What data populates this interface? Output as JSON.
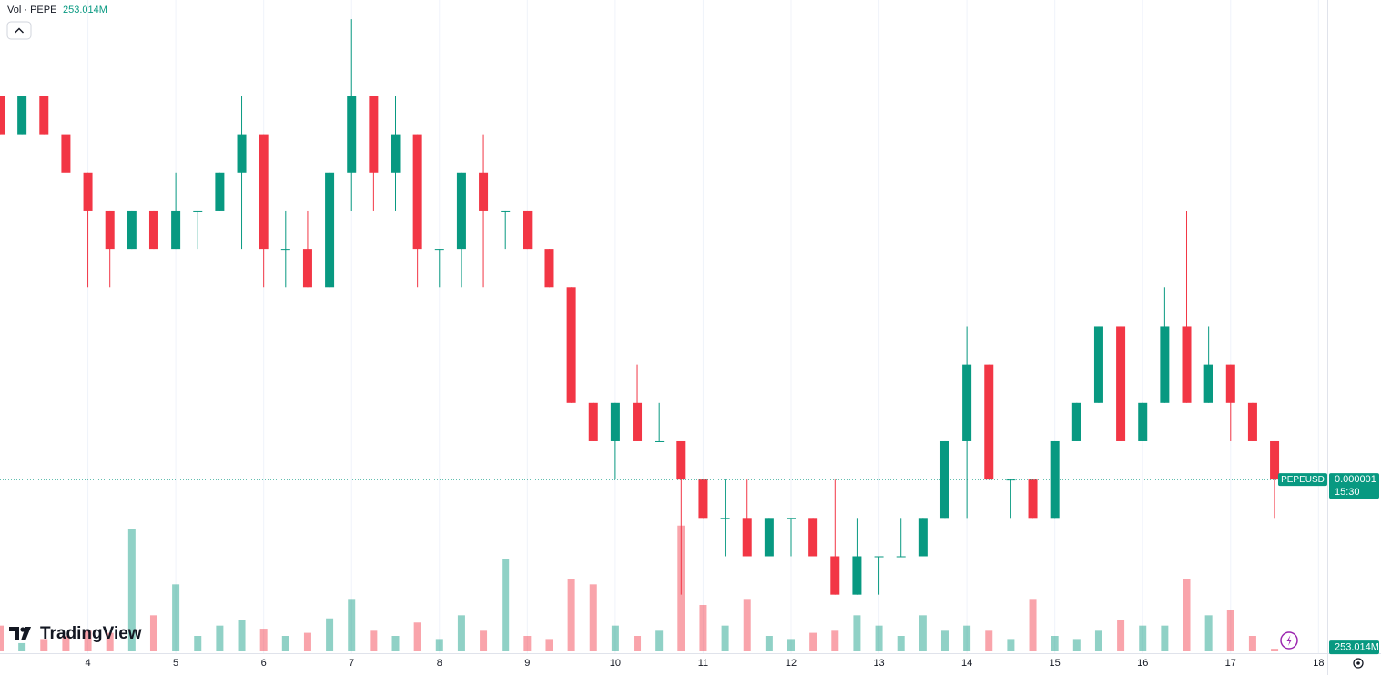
{
  "chart_data": {
    "type": "candlestick",
    "x": [
      3,
      3.25,
      3.5,
      3.75,
      4,
      4.25,
      4.5,
      4.75,
      5,
      5.25,
      5.5,
      5.75,
      6,
      6.25,
      6.5,
      6.75,
      7,
      7.25,
      7.5,
      7.75,
      8,
      8.25,
      8.5,
      8.75,
      9,
      9.25,
      9.5,
      9.75,
      10,
      10.25,
      10.5,
      10.75,
      11,
      11.25,
      11.5,
      11.75,
      12,
      12.25,
      12.5,
      12.75,
      13,
      13.25,
      13.5,
      13.75,
      14,
      14.25,
      14.5,
      14.75,
      15,
      15.25,
      15.5,
      15.75,
      16,
      16.25,
      16.5,
      16.75,
      17,
      17.25,
      17.5
    ],
    "open": [
      1.1e-06,
      1.09e-06,
      1.1e-06,
      1.09e-06,
      1.08e-06,
      1.07e-06,
      1.06e-06,
      1.07e-06,
      1.06e-06,
      1.07e-06,
      1.07e-06,
      1.08e-06,
      1.09e-06,
      1.06e-06,
      1.06e-06,
      1.05e-06,
      1.08e-06,
      1.1e-06,
      1.08e-06,
      1.09e-06,
      1.06e-06,
      1.06e-06,
      1.08e-06,
      1.07e-06,
      1.07e-06,
      1.06e-06,
      1.05e-06,
      1.02e-06,
      1.01e-06,
      1.02e-06,
      1.01e-06,
      1.01e-06,
      1e-06,
      9.9e-07,
      9.9e-07,
      9.8e-07,
      9.9e-07,
      9.9e-07,
      9.8e-07,
      9.7e-07,
      9.8e-07,
      9.8e-07,
      9.8e-07,
      9.9e-07,
      1.01e-06,
      1.03e-06,
      1e-06,
      1e-06,
      9.9e-07,
      1.01e-06,
      1.02e-06,
      1.04e-06,
      1.01e-06,
      1.02e-06,
      1.04e-06,
      1.02e-06,
      1.03e-06,
      1.02e-06,
      1.01e-06
    ],
    "high": [
      1.1e-06,
      1.1e-06,
      1.1e-06,
      1.09e-06,
      1.08e-06,
      1.07e-06,
      1.07e-06,
      1.07e-06,
      1.08e-06,
      1.07e-06,
      1.08e-06,
      1.1e-06,
      1.09e-06,
      1.07e-06,
      1.07e-06,
      1.08e-06,
      1.12e-06,
      1.1e-06,
      1.1e-06,
      1.09e-06,
      1.06e-06,
      1.08e-06,
      1.09e-06,
      1.07e-06,
      1.07e-06,
      1.06e-06,
      1.05e-06,
      1.02e-06,
      1.02e-06,
      1.03e-06,
      1.02e-06,
      1.01e-06,
      1e-06,
      1e-06,
      1e-06,
      9.9e-07,
      9.9e-07,
      9.9e-07,
      1e-06,
      9.9e-07,
      9.8e-07,
      9.9e-07,
      9.9e-07,
      1.01e-06,
      1.04e-06,
      1.03e-06,
      1e-06,
      1e-06,
      1.01e-06,
      1.02e-06,
      1.04e-06,
      1.04e-06,
      1.02e-06,
      1.05e-06,
      1.07e-06,
      1.04e-06,
      1.03e-06,
      1.02e-06,
      1.01e-06
    ],
    "low": [
      1.09e-06,
      1.09e-06,
      1.09e-06,
      1.08e-06,
      1.05e-06,
      1.05e-06,
      1.06e-06,
      1.06e-06,
      1.06e-06,
      1.06e-06,
      1.07e-06,
      1.06e-06,
      1.05e-06,
      1.05e-06,
      1.05e-06,
      1.05e-06,
      1.07e-06,
      1.07e-06,
      1.07e-06,
      1.05e-06,
      1.05e-06,
      1.05e-06,
      1.05e-06,
      1.06e-06,
      1.06e-06,
      1.05e-06,
      1.02e-06,
      1.01e-06,
      1e-06,
      1.01e-06,
      1.01e-06,
      9.7e-07,
      9.9e-07,
      9.8e-07,
      9.8e-07,
      9.8e-07,
      9.8e-07,
      9.8e-07,
      9.7e-07,
      9.7e-07,
      9.7e-07,
      9.8e-07,
      9.8e-07,
      9.9e-07,
      9.9e-07,
      1e-06,
      9.9e-07,
      9.9e-07,
      9.9e-07,
      1.01e-06,
      1.02e-06,
      1.01e-06,
      1.01e-06,
      1.02e-06,
      1.02e-06,
      1.02e-06,
      1.01e-06,
      1.01e-06,
      9.9e-07
    ],
    "close": [
      1.09e-06,
      1.1e-06,
      1.09e-06,
      1.08e-06,
      1.07e-06,
      1.06e-06,
      1.07e-06,
      1.06e-06,
      1.07e-06,
      1.07e-06,
      1.08e-06,
      1.09e-06,
      1.06e-06,
      1.06e-06,
      1.05e-06,
      1.08e-06,
      1.1e-06,
      1.08e-06,
      1.09e-06,
      1.06e-06,
      1.06e-06,
      1.08e-06,
      1.07e-06,
      1.07e-06,
      1.06e-06,
      1.05e-06,
      1.02e-06,
      1.01e-06,
      1.02e-06,
      1.01e-06,
      1.01e-06,
      1e-06,
      9.9e-07,
      9.9e-07,
      9.8e-07,
      9.9e-07,
      9.9e-07,
      9.8e-07,
      9.7e-07,
      9.8e-07,
      9.8e-07,
      9.8e-07,
      9.9e-07,
      1.01e-06,
      1.03e-06,
      1e-06,
      1e-06,
      9.9e-07,
      1.01e-06,
      1.02e-06,
      1.04e-06,
      1.01e-06,
      1.02e-06,
      1.04e-06,
      1.02e-06,
      1.03e-06,
      1.02e-06,
      1.01e-06,
      1e-06
    ],
    "up_color": "#089981",
    "down_color": "#f23645",
    "ylim": [
      9.5e-07,
      1.125e-06
    ],
    "xlim": [
      3,
      18.1
    ],
    "xticks": [
      4,
      5,
      6,
      7,
      8,
      9,
      10,
      11,
      12,
      13,
      14,
      15,
      16,
      17,
      18
    ],
    "grid": true,
    "last_price": {
      "symbol": "PEPEUSD",
      "value": 1e-06,
      "countdown": "15:30"
    },
    "volume": {
      "name": "Vol · PEPE",
      "values": [
        2500000000,
        800000000,
        1200000000,
        1500000000,
        2000000000,
        1800000000,
        11900000000,
        3500000000,
        6500000000,
        1500000000,
        2500000000,
        3000000000,
        2200000000,
        1500000000,
        1800000000,
        3200000000,
        5000000000,
        2000000000,
        1500000000,
        2800000000,
        1200000000,
        3500000000,
        2000000000,
        9000000000,
        1500000000,
        1200000000,
        7000000000,
        6500000000,
        2500000000,
        1500000000,
        2000000000,
        12200000000,
        4500000000,
        2500000000,
        5000000000,
        1500000000,
        1200000000,
        1800000000,
        2000000000,
        3500000000,
        2500000000,
        1500000000,
        3500000000,
        2000000000,
        2500000000,
        2000000000,
        1200000000,
        5000000000,
        1500000000,
        1200000000,
        2000000000,
        3000000000,
        2500000000,
        2500000000,
        7000000000,
        3500000000,
        4000000000,
        1500000000,
        253014000
      ],
      "value_labels": [
        null,
        null,
        null,
        null,
        null,
        null,
        null,
        null,
        null,
        null,
        null,
        null,
        null,
        null,
        null,
        null,
        null,
        null,
        null,
        null,
        null,
        null,
        null,
        null,
        null,
        null,
        null,
        null,
        null,
        null,
        null,
        null,
        null,
        null,
        null,
        null,
        null,
        null,
        null,
        null,
        null,
        null,
        null,
        null,
        null,
        null,
        null,
        null,
        null,
        null,
        null,
        null,
        null,
        null,
        null,
        null,
        null,
        null,
        "253.014M"
      ],
      "ylim": [
        0,
        15000000000
      ],
      "up_color": "rgba(8,153,129,0.45)",
      "down_color": "rgba(242,54,69,0.45)"
    },
    "logo": "TradingView"
  }
}
